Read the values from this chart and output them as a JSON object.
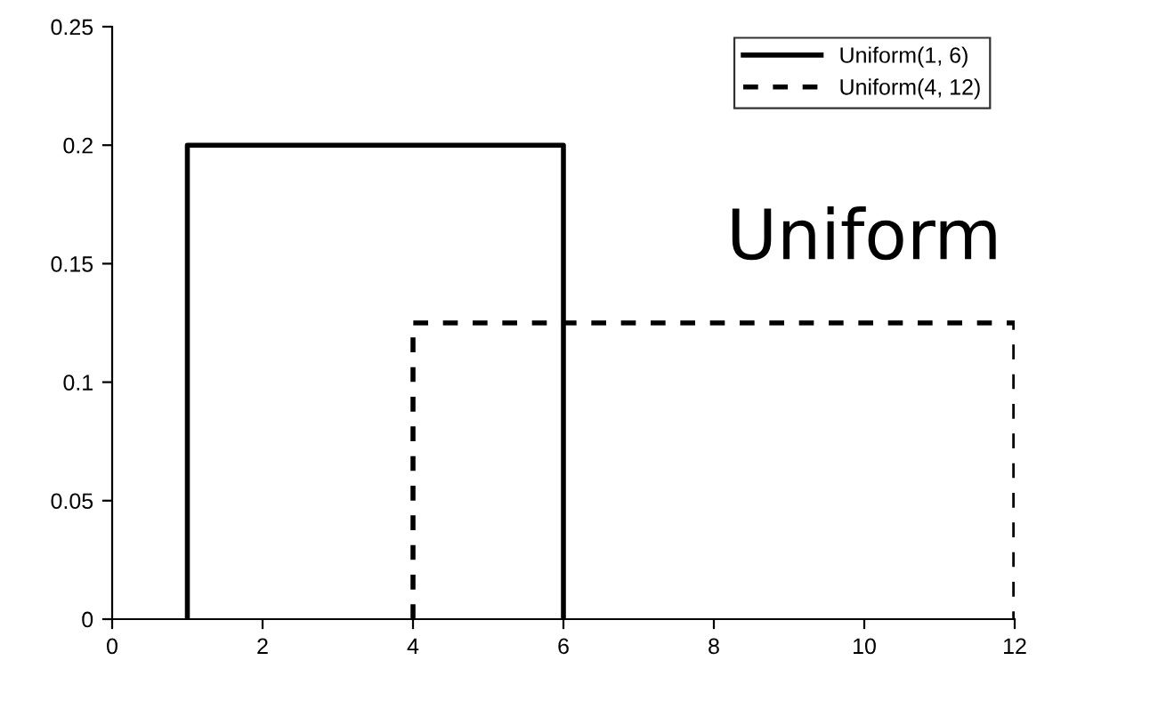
{
  "chart_data": {
    "type": "line",
    "series": [
      {
        "name": "Uniform(1, 6)",
        "color": "#000000",
        "line_style": "solid",
        "x": [
          1,
          1,
          6,
          6
        ],
        "values": [
          0,
          0.2,
          0.2,
          0
        ]
      },
      {
        "name": "Uniform(4, 12)",
        "color": "#000000",
        "line_style": "dashed",
        "x": [
          4,
          4,
          12,
          12
        ],
        "values": [
          0,
          0.125,
          0.125,
          0
        ]
      }
    ],
    "annotations": [
      "Uniform"
    ],
    "xlim": [
      0,
      12
    ],
    "xticks": [
      0,
      2,
      4,
      6,
      8,
      10,
      12
    ],
    "ylim": [
      0,
      0.25
    ],
    "yticks": [
      0,
      0.05,
      0.1,
      0.15,
      0.2,
      0.25
    ],
    "grid": false,
    "legend": "top right",
    "marker": "none"
  }
}
